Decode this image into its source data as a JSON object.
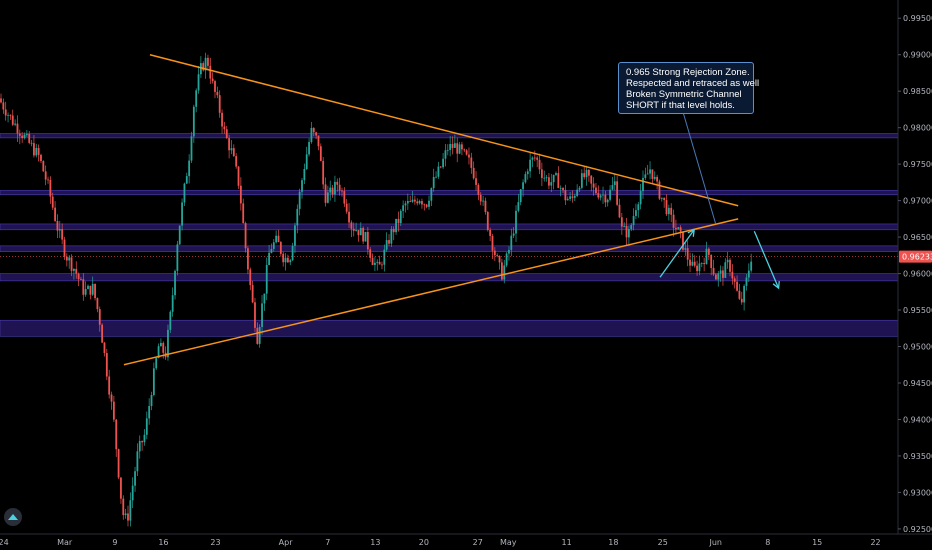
{
  "chart_data": {
    "type": "candlestick",
    "symbol_colors": {
      "up": "#26a69a",
      "down": "#ef5350",
      "background": "#000000"
    },
    "y_ticks": [
      "0.99500",
      "0.99000",
      "0.98500",
      "0.98000",
      "0.97500",
      "0.97000",
      "0.96500",
      "0.96000",
      "0.95500",
      "0.95000",
      "0.94500",
      "0.94000",
      "0.93500",
      "0.93000",
      "0.92500"
    ],
    "y_tick_values": [
      0.995,
      0.99,
      0.985,
      0.98,
      0.975,
      0.97,
      0.965,
      0.96,
      0.955,
      0.95,
      0.945,
      0.94,
      0.935,
      0.93,
      0.925
    ],
    "ylim": [
      0.9243,
      0.9975
    ],
    "x_ticks": [
      "24",
      "Mar",
      "9",
      "16",
      "23",
      "Apr",
      "7",
      "13",
      "20",
      "27",
      "May",
      "11",
      "18",
      "25",
      "Jun",
      "8",
      "15",
      "22"
    ],
    "current_price": {
      "label": "0.96233",
      "value": 0.96233,
      "color": "#ef5350"
    },
    "horizontal_zones": [
      {
        "low": 0.9786,
        "high": 0.9792
      },
      {
        "low": 0.9708,
        "high": 0.9714
      },
      {
        "low": 0.966,
        "high": 0.9668
      },
      {
        "low": 0.963,
        "high": 0.9638
      },
      {
        "low": 0.959,
        "high": 0.96
      },
      {
        "low": 0.9514,
        "high": 0.9536
      }
    ],
    "trendlines": [
      {
        "from": [
          0.167,
          0.99
        ],
        "to": [
          0.822,
          0.9693
        ],
        "color": "#f7931a"
      },
      {
        "from": [
          0.138,
          0.9475
        ],
        "to": [
          0.822,
          0.9675
        ],
        "color": "#f7931a"
      }
    ],
    "arrows": [
      {
        "from": [
          0.735,
          0.9595
        ],
        "to": [
          0.773,
          0.966
        ],
        "color": "#4dd0e1"
      },
      {
        "from": [
          0.84,
          0.9658
        ],
        "to": [
          0.867,
          0.958
        ],
        "color": "#4dd0e1"
      }
    ],
    "annotation_pointer": {
      "from": [
        0.755,
        0.9845
      ],
      "to": [
        0.797,
        0.9668
      ],
      "color": "#4a78b5"
    },
    "path_points": [
      [
        0,
        0.984
      ],
      [
        0.015,
        0.981
      ],
      [
        0.03,
        0.9785
      ],
      [
        0.045,
        0.976
      ],
      [
        0.055,
        0.972
      ],
      [
        0.065,
        0.9665
      ],
      [
        0.075,
        0.9625
      ],
      [
        0.085,
        0.9605
      ],
      [
        0.095,
        0.9575
      ],
      [
        0.105,
        0.958
      ],
      [
        0.112,
        0.954
      ],
      [
        0.12,
        0.947
      ],
      [
        0.128,
        0.94
      ],
      [
        0.133,
        0.9335
      ],
      [
        0.138,
        0.9272
      ],
      [
        0.143,
        0.926
      ],
      [
        0.148,
        0.93
      ],
      [
        0.155,
        0.9355
      ],
      [
        0.163,
        0.938
      ],
      [
        0.17,
        0.944
      ],
      [
        0.178,
        0.95
      ],
      [
        0.186,
        0.949
      ],
      [
        0.193,
        0.956
      ],
      [
        0.198,
        0.9635
      ],
      [
        0.205,
        0.97
      ],
      [
        0.212,
        0.976
      ],
      [
        0.218,
        0.984
      ],
      [
        0.225,
        0.988
      ],
      [
        0.232,
        0.9895
      ],
      [
        0.238,
        0.986
      ],
      [
        0.245,
        0.983
      ],
      [
        0.252,
        0.979
      ],
      [
        0.26,
        0.9765
      ],
      [
        0.268,
        0.972
      ],
      [
        0.275,
        0.9635
      ],
      [
        0.282,
        0.9565
      ],
      [
        0.288,
        0.9512
      ],
      [
        0.295,
        0.957
      ],
      [
        0.302,
        0.9635
      ],
      [
        0.31,
        0.9645
      ],
      [
        0.318,
        0.962
      ],
      [
        0.325,
        0.9625
      ],
      [
        0.332,
        0.9685
      ],
      [
        0.34,
        0.9745
      ],
      [
        0.348,
        0.9795
      ],
      [
        0.356,
        0.978
      ],
      [
        0.363,
        0.9705
      ],
      [
        0.37,
        0.971
      ],
      [
        0.378,
        0.9725
      ],
      [
        0.386,
        0.97
      ],
      [
        0.393,
        0.9665
      ],
      [
        0.4,
        0.966
      ],
      [
        0.408,
        0.965
      ],
      [
        0.416,
        0.962
      ],
      [
        0.423,
        0.9605
      ],
      [
        0.43,
        0.963
      ],
      [
        0.437,
        0.9655
      ],
      [
        0.445,
        0.9672
      ],
      [
        0.452,
        0.9695
      ],
      [
        0.46,
        0.9695
      ],
      [
        0.468,
        0.9705
      ],
      [
        0.476,
        0.9695
      ],
      [
        0.484,
        0.9725
      ],
      [
        0.492,
        0.9745
      ],
      [
        0.5,
        0.9772
      ],
      [
        0.508,
        0.9775
      ],
      [
        0.516,
        0.9765
      ],
      [
        0.523,
        0.9755
      ],
      [
        0.53,
        0.9735
      ],
      [
        0.537,
        0.9705
      ],
      [
        0.545,
        0.9665
      ],
      [
        0.552,
        0.963
      ],
      [
        0.56,
        0.9598
      ],
      [
        0.567,
        0.9625
      ],
      [
        0.574,
        0.9665
      ],
      [
        0.582,
        0.9715
      ],
      [
        0.59,
        0.975
      ],
      [
        0.598,
        0.976
      ],
      [
        0.606,
        0.9735
      ],
      [
        0.614,
        0.9725
      ],
      [
        0.622,
        0.973
      ],
      [
        0.63,
        0.9705
      ],
      [
        0.638,
        0.97
      ],
      [
        0.646,
        0.9725
      ],
      [
        0.654,
        0.9735
      ],
      [
        0.662,
        0.9715
      ],
      [
        0.67,
        0.971
      ],
      [
        0.678,
        0.9705
      ],
      [
        0.686,
        0.9725
      ],
      [
        0.694,
        0.966
      ],
      [
        0.702,
        0.9655
      ],
      [
        0.71,
        0.9695
      ],
      [
        0.718,
        0.9725
      ],
      [
        0.726,
        0.9745
      ],
      [
        0.734,
        0.9715
      ],
      [
        0.742,
        0.9695
      ],
      [
        0.75,
        0.967
      ],
      [
        0.758,
        0.9655
      ],
      [
        0.766,
        0.9625
      ],
      [
        0.774,
        0.9605
      ],
      [
        0.782,
        0.9615
      ],
      [
        0.79,
        0.963
      ],
      [
        0.798,
        0.9595
      ],
      [
        0.806,
        0.96
      ],
      [
        0.813,
        0.9615
      ],
      [
        0.82,
        0.9585
      ],
      [
        0.826,
        0.9555
      ],
      [
        0.832,
        0.9585
      ],
      [
        0.838,
        0.9623
      ]
    ]
  },
  "annotation": {
    "line1": "0.965 Strong Rejection Zone.",
    "line2": "Respected and retraced as well",
    "line3": "Broken Symmetric Channel",
    "line4": "SHORT if that level holds."
  },
  "logo": {
    "icon": "tradingview-logo-icon"
  }
}
